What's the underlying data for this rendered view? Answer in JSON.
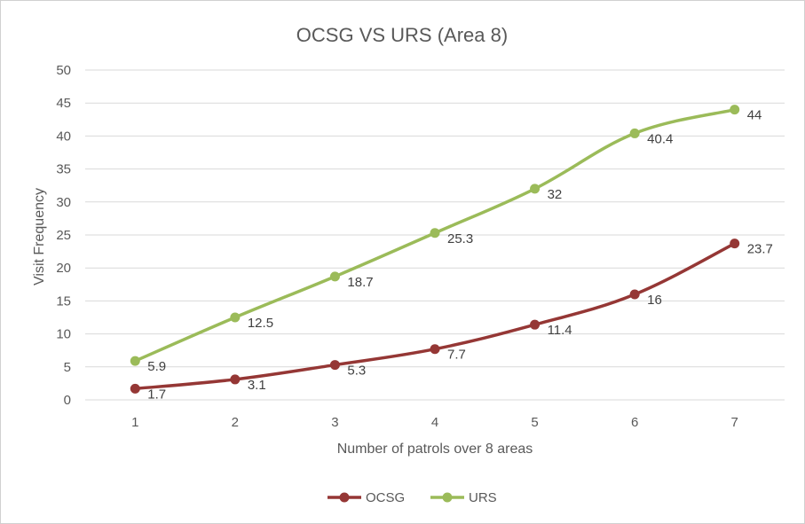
{
  "chart_data": {
    "type": "line",
    "title": "OCSG VS URS (Area 8)",
    "xlabel": "Number of patrols over 8 areas",
    "ylabel": "Visit Frequency",
    "x": [
      1,
      2,
      3,
      4,
      5,
      6,
      7
    ],
    "ylim": [
      0,
      50
    ],
    "yticks": [
      0,
      5,
      10,
      15,
      20,
      25,
      30,
      35,
      40,
      45,
      50
    ],
    "grid": true,
    "legend_position": "bottom",
    "series": [
      {
        "name": "OCSG",
        "color": "#953735",
        "values": [
          1.7,
          3.1,
          5.3,
          7.7,
          11.4,
          16,
          23.7
        ]
      },
      {
        "name": "URS",
        "color": "#9BBB59",
        "values": [
          5.9,
          12.5,
          18.7,
          25.3,
          32,
          40.4,
          44
        ]
      }
    ]
  }
}
